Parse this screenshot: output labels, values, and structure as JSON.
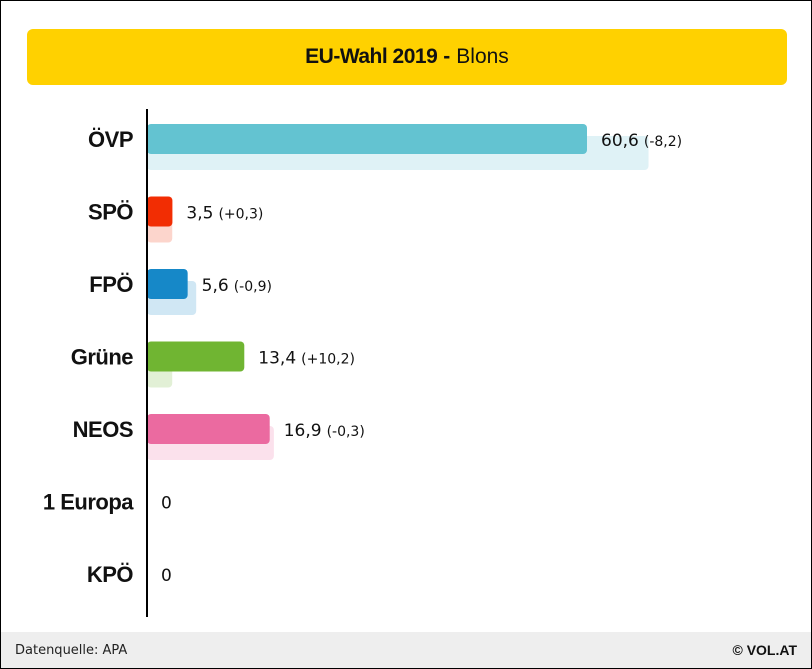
{
  "title": {
    "main": "EU-Wahl 2019",
    "separator": "-",
    "location": "Blons"
  },
  "chart_data": {
    "type": "bar",
    "orientation": "horizontal",
    "categories": [
      "ÖVP",
      "SPÖ",
      "FPÖ",
      "Grüne",
      "NEOS",
      "1 Europa",
      "KPÖ"
    ],
    "series": [
      {
        "values": [
          60.6,
          3.5,
          5.6,
          13.4,
          16.9,
          0,
          0
        ],
        "value_labels": [
          "60,6",
          "3,5",
          "5,6",
          "13,4",
          "16,9",
          "0",
          "0"
        ],
        "change_labels": [
          "(-8,2)",
          "(+0,3)",
          "(-0,9)",
          "(+10,2)",
          "(-0,3)",
          "",
          ""
        ]
      },
      {
        "values": [
          68.8,
          3.2,
          6.5,
          3.2,
          17.2,
          0,
          0
        ]
      }
    ],
    "colors": [
      "#63c3d1",
      "#f22d03",
      "#1688c8",
      "#70b532",
      "#eb6aa0",
      "#999999",
      "#999999"
    ],
    "previous_colors": [
      "#dff2f6",
      "#fcd5cc",
      "#d0e7f4",
      "#e2f0d6",
      "#fbe1ec",
      "#eeeeee",
      "#eeeeee"
    ],
    "xlim": [
      0,
      70
    ],
    "grid": false,
    "legend": "none"
  },
  "footer": {
    "source": "Datenquelle: APA",
    "brand": "© VOL.AT"
  }
}
